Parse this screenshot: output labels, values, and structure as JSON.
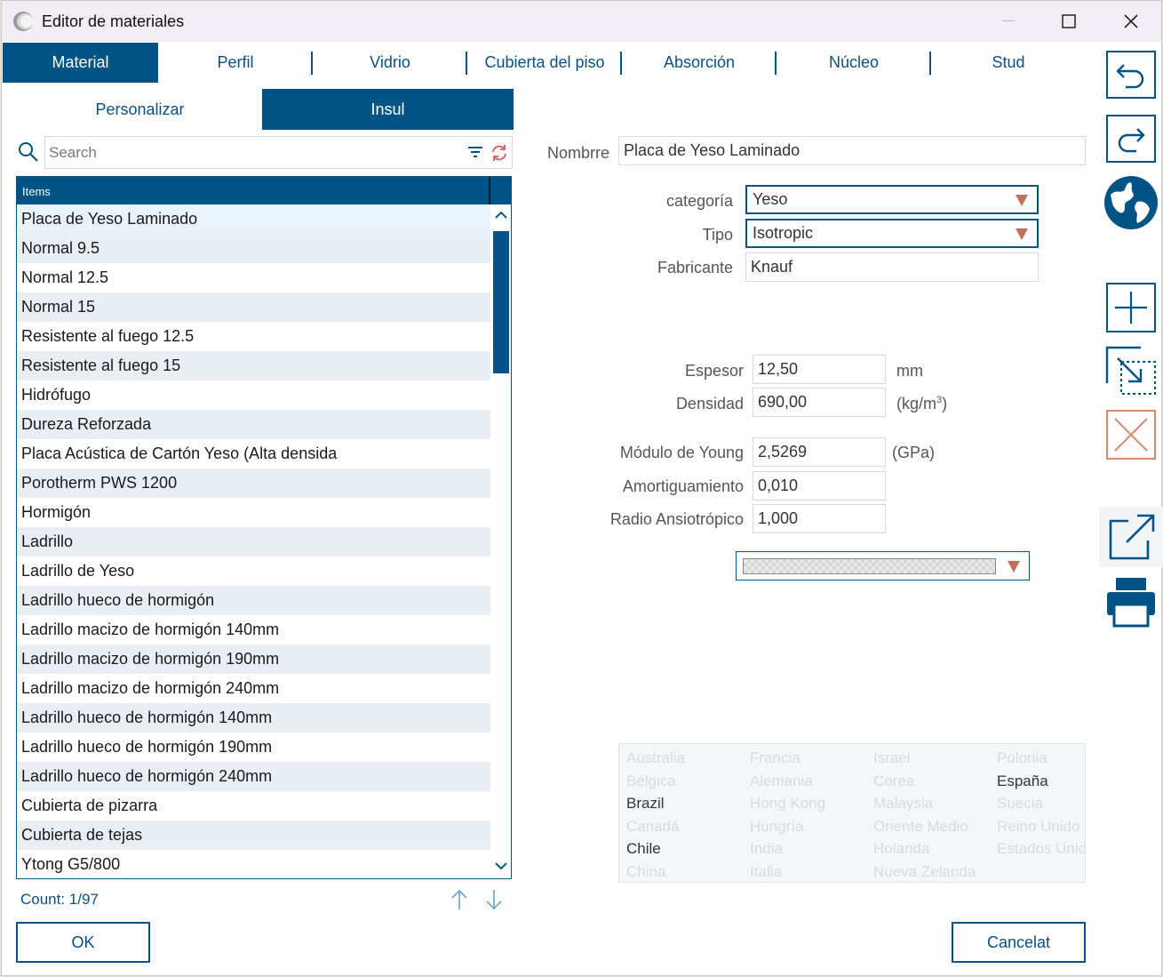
{
  "window": {
    "title": "Editor de materiales"
  },
  "tabs": [
    {
      "label": "Material",
      "active": true
    },
    {
      "label": "Perfil"
    },
    {
      "label": "Vidrio"
    },
    {
      "label": "Cubierta del piso"
    },
    {
      "label": "Absorción"
    },
    {
      "label": "Núcleo"
    },
    {
      "label": "Stud"
    }
  ],
  "subtabs": [
    {
      "label": "Personalizar"
    },
    {
      "label": "Insul",
      "active": true
    }
  ],
  "search": {
    "placeholder": "Search"
  },
  "list": {
    "header": "Items",
    "items": [
      "Placa de Yeso Laminado",
      "Normal 9.5",
      "Normal 12.5",
      "Normal 15",
      "Resistente al fuego 12.5",
      "Resistente al fuego 15",
      "Hidrófugo",
      "Dureza Reforzada",
      "Placa Acústica de Cartón Yeso (Alta densida",
      "Porotherm PWS 1200",
      "Hormigón",
      "Ladrillo",
      "Ladrillo de Yeso",
      "Ladrillo hueco de hormigón",
      "Ladrillo macizo de hormigón 140mm",
      "Ladrillo macizo de hormigón 190mm",
      "Ladrillo macizo de hormigón 240mm",
      "Ladrillo hueco de hormigón 140mm",
      "Ladrillo hueco de hormigón 190mm",
      "Ladrillo hueco de hormigón 240mm",
      "Cubierta de pizarra",
      "Cubierta de tejas",
      "Ytong G5/800"
    ],
    "count": "Count: 1/97"
  },
  "form": {
    "nombre_label": "Nombrre",
    "nombre_value": "Placa de Yeso Laminado",
    "categoria_label": "categoría",
    "categoria_value": "Yeso",
    "tipo_label": "Tipo",
    "tipo_value": "Isotropic",
    "fabricante_label": "Fabricante",
    "fabricante_value": "Knauf",
    "espesor_label": "Espesor",
    "espesor_value": "12,50",
    "espesor_unit": "mm",
    "densidad_label": "Densidad",
    "densidad_value": "690,00",
    "densidad_unit": "(kg/m",
    "densidad_unit_sup": "3",
    "densidad_unit_close": ")",
    "young_label": "Módulo de Young",
    "young_value": "2,5269",
    "young_unit": "(GPa)",
    "amort_label": "Amortiguamiento",
    "amort_value": "0,010",
    "radio_label": "Radio Ansiotrópico",
    "radio_value": "1,000"
  },
  "countries": {
    "columns": [
      [
        "Australia",
        "Bélgica",
        "Brazil",
        "Canadá",
        "Chile",
        "China"
      ],
      [
        "Francia",
        "Alemania",
        "Hong Kong",
        "Hungría",
        "India",
        "Italia"
      ],
      [
        "Israel",
        "Corea",
        "Malaysia",
        "Oriente Medio",
        "Holanda",
        "Nueva Zelanda"
      ],
      [
        "Polonia",
        "España",
        "Suecia",
        "Reino Unido",
        "Estados Unidos"
      ]
    ],
    "selected": [
      "Brazil",
      "Chile",
      "España"
    ]
  },
  "buttons": {
    "ok": "OK",
    "cancel": "Cancelat"
  },
  "colors": {
    "accent": "#005485",
    "danger": "#d9886f"
  }
}
